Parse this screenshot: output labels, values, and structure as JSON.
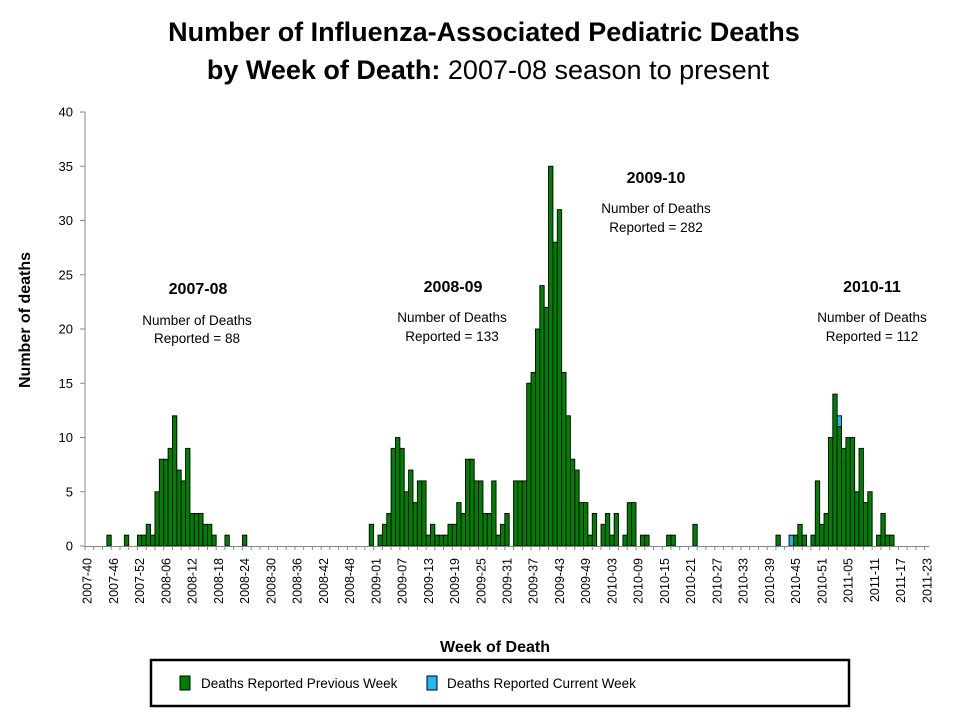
{
  "chart_data": {
    "type": "bar",
    "title_line1": "Number of Influenza-Associated Pediatric Deaths",
    "title_line2_bold": "by Week of Death:",
    "title_line2_normal": " 2007-08 season to present",
    "xlabel": "Week of Death",
    "ylabel": "Number of deaths",
    "ylim": [
      0,
      40
    ],
    "yticks": [
      "0",
      "5",
      "10",
      "15",
      "20",
      "25",
      "30",
      "35",
      "40"
    ],
    "xrange": [
      "2007-40",
      "2011-23"
    ],
    "xticks": [
      "2007-40",
      "2007-46",
      "2007-52",
      "2008-06",
      "2008-12",
      "2008-18",
      "2008-24",
      "2008-30",
      "2008-36",
      "2008-42",
      "2008-48",
      "2009-01",
      "2009-07",
      "2009-13",
      "2009-19",
      "2009-25",
      "2009-31",
      "2009-37",
      "2009-43",
      "2009-49",
      "2010-03",
      "2010-09",
      "2010-15",
      "2010-21",
      "2010-27",
      "2010-33",
      "2010-39",
      "2010-45",
      "2010-51",
      "2011-05",
      "2011-11",
      "2011-17",
      "2011-23"
    ],
    "stacked": true,
    "grid": false,
    "legend_placement": "bottom",
    "series": [
      {
        "name": "Deaths Reported Previous Week",
        "color": "#008000",
        "points": [
          {
            "week": "2007-45",
            "value": 1
          },
          {
            "week": "2007-49",
            "value": 1
          },
          {
            "week": "2007-52",
            "value": 1
          },
          {
            "week": "2008-01",
            "value": 1
          },
          {
            "week": "2008-02",
            "value": 2
          },
          {
            "week": "2008-03",
            "value": 1
          },
          {
            "week": "2008-04",
            "value": 5
          },
          {
            "week": "2008-05",
            "value": 8
          },
          {
            "week": "2008-06",
            "value": 8
          },
          {
            "week": "2008-07",
            "value": 9
          },
          {
            "week": "2008-08",
            "value": 12
          },
          {
            "week": "2008-09",
            "value": 7
          },
          {
            "week": "2008-10",
            "value": 6
          },
          {
            "week": "2008-11",
            "value": 9
          },
          {
            "week": "2008-12",
            "value": 3
          },
          {
            "week": "2008-13",
            "value": 3
          },
          {
            "week": "2008-14",
            "value": 3
          },
          {
            "week": "2008-15",
            "value": 2
          },
          {
            "week": "2008-16",
            "value": 2
          },
          {
            "week": "2008-17",
            "value": 1
          },
          {
            "week": "2008-20",
            "value": 1
          },
          {
            "week": "2008-24",
            "value": 1
          },
          {
            "week": "2008-53",
            "value": 2
          },
          {
            "week": "2009-02",
            "value": 1
          },
          {
            "week": "2009-03",
            "value": 2
          },
          {
            "week": "2009-04",
            "value": 3
          },
          {
            "week": "2009-05",
            "value": 9
          },
          {
            "week": "2009-06",
            "value": 10
          },
          {
            "week": "2009-07",
            "value": 9
          },
          {
            "week": "2009-08",
            "value": 5
          },
          {
            "week": "2009-09",
            "value": 7
          },
          {
            "week": "2009-10",
            "value": 4
          },
          {
            "week": "2009-11",
            "value": 6
          },
          {
            "week": "2009-12",
            "value": 6
          },
          {
            "week": "2009-13",
            "value": 1
          },
          {
            "week": "2009-14",
            "value": 2
          },
          {
            "week": "2009-15",
            "value": 1
          },
          {
            "week": "2009-16",
            "value": 1
          },
          {
            "week": "2009-17",
            "value": 1
          },
          {
            "week": "2009-18",
            "value": 2
          },
          {
            "week": "2009-19",
            "value": 2
          },
          {
            "week": "2009-20",
            "value": 4
          },
          {
            "week": "2009-21",
            "value": 3
          },
          {
            "week": "2009-22",
            "value": 8
          },
          {
            "week": "2009-23",
            "value": 8
          },
          {
            "week": "2009-24",
            "value": 6
          },
          {
            "week": "2009-25",
            "value": 6
          },
          {
            "week": "2009-26",
            "value": 3
          },
          {
            "week": "2009-27",
            "value": 3
          },
          {
            "week": "2009-28",
            "value": 6
          },
          {
            "week": "2009-29",
            "value": 1
          },
          {
            "week": "2009-30",
            "value": 2
          },
          {
            "week": "2009-31",
            "value": 3
          },
          {
            "week": "2009-33",
            "value": 6
          },
          {
            "week": "2009-34",
            "value": 6
          },
          {
            "week": "2009-35",
            "value": 6
          },
          {
            "week": "2009-36",
            "value": 15
          },
          {
            "week": "2009-37",
            "value": 16
          },
          {
            "week": "2009-38",
            "value": 20
          },
          {
            "week": "2009-39",
            "value": 24
          },
          {
            "week": "2009-40",
            "value": 22
          },
          {
            "week": "2009-41",
            "value": 35
          },
          {
            "week": "2009-42",
            "value": 28
          },
          {
            "week": "2009-43",
            "value": 31
          },
          {
            "week": "2009-44",
            "value": 16
          },
          {
            "week": "2009-45",
            "value": 12
          },
          {
            "week": "2009-46",
            "value": 8
          },
          {
            "week": "2009-47",
            "value": 7
          },
          {
            "week": "2009-48",
            "value": 4
          },
          {
            "week": "2009-49",
            "value": 4
          },
          {
            "week": "2009-50",
            "value": 1
          },
          {
            "week": "2009-51",
            "value": 3
          },
          {
            "week": "2010-01",
            "value": 2
          },
          {
            "week": "2010-02",
            "value": 3
          },
          {
            "week": "2010-03",
            "value": 1
          },
          {
            "week": "2010-04",
            "value": 3
          },
          {
            "week": "2010-06",
            "value": 1
          },
          {
            "week": "2010-07",
            "value": 4
          },
          {
            "week": "2010-08",
            "value": 4
          },
          {
            "week": "2010-10",
            "value": 1
          },
          {
            "week": "2010-11",
            "value": 1
          },
          {
            "week": "2010-16",
            "value": 1
          },
          {
            "week": "2010-17",
            "value": 1
          },
          {
            "week": "2010-22",
            "value": 2
          },
          {
            "week": "2010-41",
            "value": 1
          },
          {
            "week": "2010-45",
            "value": 1
          },
          {
            "week": "2010-46",
            "value": 2
          },
          {
            "week": "2010-47",
            "value": 1
          },
          {
            "week": "2010-49",
            "value": 1
          },
          {
            "week": "2010-50",
            "value": 6
          },
          {
            "week": "2010-51",
            "value": 2
          },
          {
            "week": "2010-52",
            "value": 3
          },
          {
            "week": "2011-01",
            "value": 10
          },
          {
            "week": "2011-02",
            "value": 14
          },
          {
            "week": "2011-03",
            "value": 11
          },
          {
            "week": "2011-04",
            "value": 9
          },
          {
            "week": "2011-05",
            "value": 10
          },
          {
            "week": "2011-06",
            "value": 10
          },
          {
            "week": "2011-07",
            "value": 5
          },
          {
            "week": "2011-08",
            "value": 9
          },
          {
            "week": "2011-09",
            "value": 4
          },
          {
            "week": "2011-10",
            "value": 5
          },
          {
            "week": "2011-12",
            "value": 1
          },
          {
            "week": "2011-13",
            "value": 3
          },
          {
            "week": "2011-14",
            "value": 1
          },
          {
            "week": "2011-15",
            "value": 1
          }
        ]
      },
      {
        "name": "Deaths Reported Current Week",
        "color": "#1fb8f0",
        "points": [
          {
            "week": "2010-44",
            "value": 1
          },
          {
            "week": "2011-03",
            "value": 1
          }
        ]
      }
    ],
    "annotations": [
      {
        "season": "2007-08",
        "line1": "Number of Deaths",
        "line2": "Reported = 88"
      },
      {
        "season": "2008-09",
        "line1": "Number of Deaths",
        "line2": "Reported = 133"
      },
      {
        "season": "2009-10",
        "line1": "Number of Deaths",
        "line2": "Reported = 282"
      },
      {
        "season": "2010-11",
        "line1": "Number of Deaths",
        "line2": "Reported = 112"
      }
    ]
  }
}
